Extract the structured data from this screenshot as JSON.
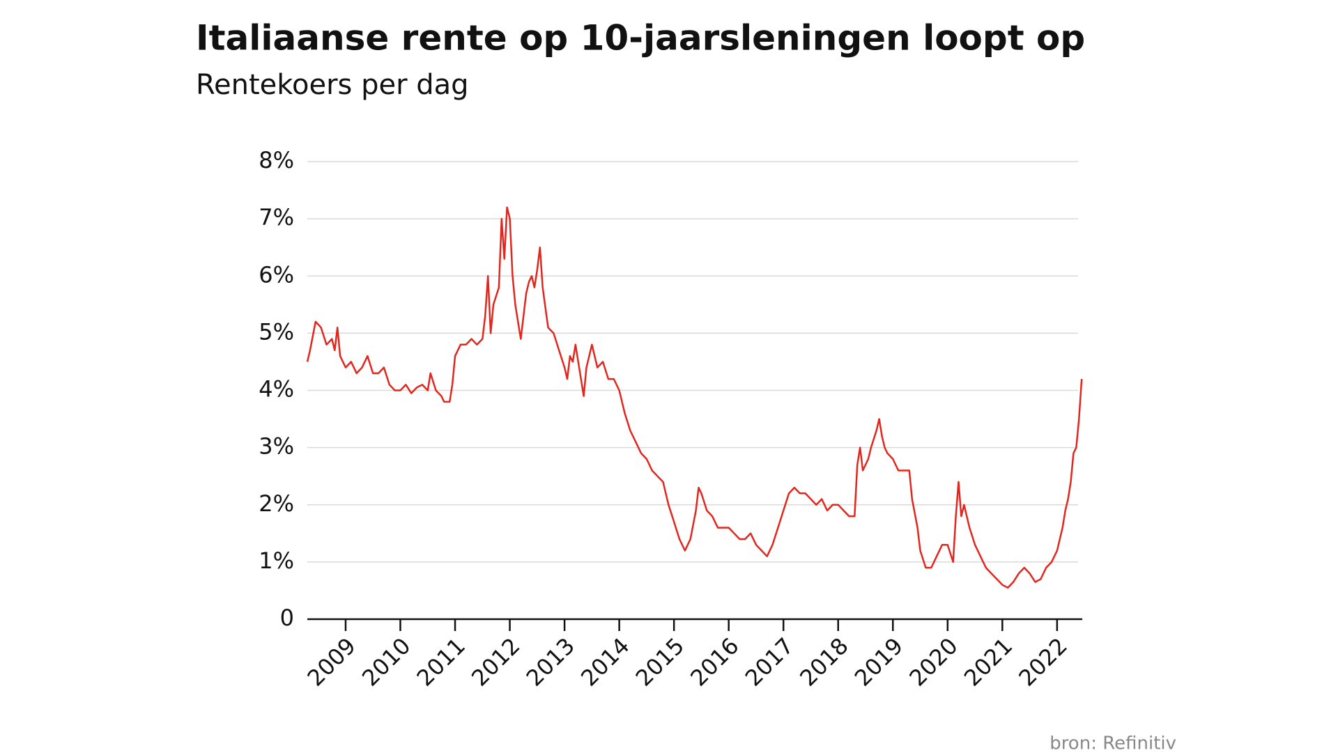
{
  "chart_data": {
    "type": "line",
    "title": "Italiaanse rente op 10-jaarsleningen loopt op",
    "subtitle": "Rentekoers per dag",
    "source": "bron: Refinitiv",
    "color": "#e2261d",
    "grid": true,
    "x": [
      2008.3,
      2008.35,
      2008.45,
      2008.55,
      2008.65,
      2008.75,
      2008.8,
      2008.85,
      2008.9,
      2009.0,
      2009.1,
      2009.2,
      2009.3,
      2009.4,
      2009.5,
      2009.6,
      2009.7,
      2009.8,
      2009.9,
      2010.0,
      2010.1,
      2010.2,
      2010.3,
      2010.4,
      2010.5,
      2010.55,
      2010.65,
      2010.75,
      2010.8,
      2010.9,
      2010.95,
      2011.0,
      2011.1,
      2011.2,
      2011.3,
      2011.4,
      2011.5,
      2011.55,
      2011.6,
      2011.65,
      2011.7,
      2011.8,
      2011.85,
      2011.9,
      2011.95,
      2012.0,
      2012.05,
      2012.1,
      2012.15,
      2012.2,
      2012.3,
      2012.35,
      2012.4,
      2012.45,
      2012.5,
      2012.55,
      2012.6,
      2012.7,
      2012.8,
      2012.9,
      2013.0,
      2013.05,
      2013.1,
      2013.15,
      2013.2,
      2013.3,
      2013.35,
      2013.4,
      2013.5,
      2013.6,
      2013.7,
      2013.8,
      2013.9,
      2014.0,
      2014.1,
      2014.2,
      2014.3,
      2014.4,
      2014.5,
      2014.6,
      2014.7,
      2014.8,
      2014.9,
      2015.0,
      2015.1,
      2015.2,
      2015.3,
      2015.4,
      2015.45,
      2015.5,
      2015.6,
      2015.7,
      2015.8,
      2015.9,
      2016.0,
      2016.1,
      2016.2,
      2016.3,
      2016.4,
      2016.5,
      2016.6,
      2016.7,
      2016.8,
      2016.9,
      2017.0,
      2017.1,
      2017.2,
      2017.3,
      2017.4,
      2017.5,
      2017.6,
      2017.7,
      2017.8,
      2017.9,
      2018.0,
      2018.1,
      2018.2,
      2018.3,
      2018.35,
      2018.4,
      2018.45,
      2018.55,
      2018.6,
      2018.7,
      2018.75,
      2018.8,
      2018.85,
      2018.9,
      2019.0,
      2019.1,
      2019.2,
      2019.3,
      2019.35,
      2019.45,
      2019.5,
      2019.6,
      2019.7,
      2019.8,
      2019.9,
      2020.0,
      2020.1,
      2020.15,
      2020.2,
      2020.25,
      2020.3,
      2020.4,
      2020.5,
      2020.6,
      2020.7,
      2020.8,
      2020.9,
      2021.0,
      2021.1,
      2021.2,
      2021.3,
      2021.4,
      2021.5,
      2021.6,
      2021.7,
      2021.8,
      2021.9,
      2022.0,
      2022.1,
      2022.15,
      2022.2,
      2022.25,
      2022.3,
      2022.35,
      2022.4,
      2022.45
    ],
    "values": [
      4.5,
      4.7,
      5.2,
      5.1,
      4.8,
      4.9,
      4.7,
      5.1,
      4.6,
      4.4,
      4.5,
      4.3,
      4.4,
      4.6,
      4.3,
      4.3,
      4.4,
      4.1,
      4.0,
      4.0,
      4.1,
      3.95,
      4.05,
      4.1,
      4.0,
      4.3,
      4.0,
      3.9,
      3.8,
      3.8,
      4.1,
      4.6,
      4.8,
      4.8,
      4.9,
      4.8,
      4.9,
      5.3,
      6.0,
      5.0,
      5.5,
      5.8,
      7.0,
      6.3,
      7.2,
      7.0,
      6.0,
      5.5,
      5.2,
      4.9,
      5.7,
      5.9,
      6.0,
      5.8,
      6.1,
      6.5,
      5.8,
      5.1,
      5.0,
      4.7,
      4.4,
      4.2,
      4.6,
      4.5,
      4.8,
      4.2,
      3.9,
      4.4,
      4.8,
      4.4,
      4.5,
      4.2,
      4.2,
      4.0,
      3.6,
      3.3,
      3.1,
      2.9,
      2.8,
      2.6,
      2.5,
      2.4,
      2.0,
      1.7,
      1.4,
      1.2,
      1.4,
      1.9,
      2.3,
      2.2,
      1.9,
      1.8,
      1.6,
      1.6,
      1.6,
      1.5,
      1.4,
      1.4,
      1.5,
      1.3,
      1.2,
      1.1,
      1.3,
      1.6,
      1.9,
      2.2,
      2.3,
      2.2,
      2.2,
      2.1,
      2.0,
      2.1,
      1.9,
      2.0,
      2.0,
      1.9,
      1.8,
      1.8,
      2.7,
      3.0,
      2.6,
      2.8,
      3.0,
      3.3,
      3.5,
      3.2,
      3.0,
      2.9,
      2.8,
      2.6,
      2.6,
      2.6,
      2.1,
      1.6,
      1.2,
      0.9,
      0.9,
      1.1,
      1.3,
      1.3,
      1.0,
      1.8,
      2.4,
      1.8,
      2.0,
      1.6,
      1.3,
      1.1,
      0.9,
      0.8,
      0.7,
      0.6,
      0.55,
      0.65,
      0.8,
      0.9,
      0.8,
      0.65,
      0.7,
      0.9,
      1.0,
      1.2,
      1.6,
      1.9,
      2.1,
      2.4,
      2.9,
      3.0,
      3.5,
      4.2
    ],
    "xlim": [
      2008.3,
      2022.46
    ],
    "xticks": [
      2009,
      2010,
      2011,
      2012,
      2013,
      2014,
      2015,
      2016,
      2017,
      2018,
      2019,
      2020,
      2021,
      2022
    ],
    "ylim": [
      0,
      8
    ],
    "yticks": [
      0,
      {
        "value": 1,
        "label": "1%"
      },
      {
        "value": 2,
        "label": "2%"
      },
      {
        "value": 3,
        "label": "3%"
      },
      {
        "value": 4,
        "label": "4%"
      },
      {
        "value": 5,
        "label": "5%"
      },
      {
        "value": 6,
        "label": "6%"
      },
      {
        "value": 7,
        "label": "7%"
      },
      {
        "value": 8,
        "label": "8%"
      }
    ]
  }
}
